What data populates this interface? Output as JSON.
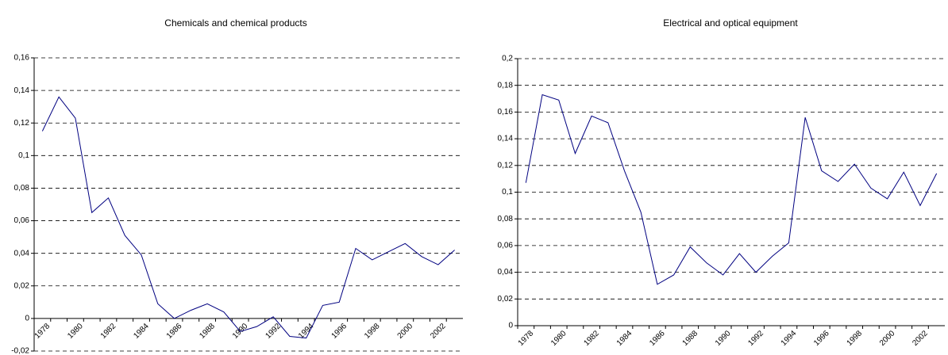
{
  "chart_data": [
    {
      "type": "line",
      "title": "Chemicals and chemical products",
      "categories": [
        "1978",
        null,
        "1980",
        null,
        "1982",
        null,
        "1984",
        null,
        "1986",
        null,
        "1988",
        null,
        "1990",
        null,
        "1992",
        null,
        "1994",
        null,
        "1996",
        null,
        "1998",
        null,
        "2000",
        null,
        "2002",
        null
      ],
      "series": [
        {
          "color": "#000080",
          "values": [
            0.115,
            0.136,
            0.123,
            0.065,
            0.074,
            0.051,
            0.039,
            0.009,
            0,
            0.005,
            0.009,
            0.004,
            -0.008,
            -0.005,
            0.001,
            -0.011,
            -0.012,
            0.008,
            0.01,
            0.043,
            0.036,
            0.041,
            0.046,
            0.038,
            0.033,
            0.042
          ]
        }
      ],
      "ylim": [
        -0.02,
        0.16
      ],
      "yticks": [
        {
          "value": -0.02,
          "label": "-0,02"
        },
        0,
        {
          "value": 0.02,
          "label": "0,02"
        },
        {
          "value": 0.04,
          "label": "0,04"
        },
        {
          "value": 0.06,
          "label": "0,06"
        },
        {
          "value": 0.08,
          "label": "0,08"
        },
        {
          "value": 0.1,
          "label": "0,1"
        },
        {
          "value": 0.12,
          "label": "0,12"
        },
        {
          "value": 0.14,
          "label": "0,14"
        },
        {
          "value": 0.16,
          "label": "0,16"
        }
      ],
      "grid": true
    },
    {
      "type": "line",
      "title": "Electrical and optical equipment",
      "categories": [
        "1978",
        null,
        "1980",
        null,
        "1982",
        null,
        "1984",
        null,
        "1986",
        null,
        "1988",
        null,
        "1990",
        null,
        "1992",
        null,
        "1994",
        null,
        "1996",
        null,
        "1998",
        null,
        "2000",
        null,
        "2002",
        null
      ],
      "series": [
        {
          "color": "#000080",
          "values": [
            0.107,
            0.173,
            0.169,
            0.129,
            0.157,
            0.152,
            0.116,
            0.085,
            0.031,
            0.038,
            0.059,
            0.047,
            0.038,
            0.054,
            0.04,
            0.052,
            0.062,
            0.156,
            0.116,
            0.108,
            0.121,
            0.103,
            0.095,
            0.115,
            0.09,
            0.114
          ]
        }
      ],
      "ylim": [
        0,
        0.2
      ],
      "yticks": [
        0,
        {
          "value": 0.02,
          "label": "0,02"
        },
        {
          "value": 0.04,
          "label": "0,04"
        },
        {
          "value": 0.06,
          "label": "0,06"
        },
        {
          "value": 0.08,
          "label": "0,08"
        },
        {
          "value": 0.1,
          "label": "0,1"
        },
        {
          "value": 0.12,
          "label": "0,12"
        },
        {
          "value": 0.14,
          "label": "0,14"
        },
        {
          "value": 0.16,
          "label": "0,16"
        },
        {
          "value": 0.18,
          "label": "0,18"
        },
        {
          "value": 0.2,
          "label": "0,2"
        }
      ],
      "grid": true
    }
  ]
}
